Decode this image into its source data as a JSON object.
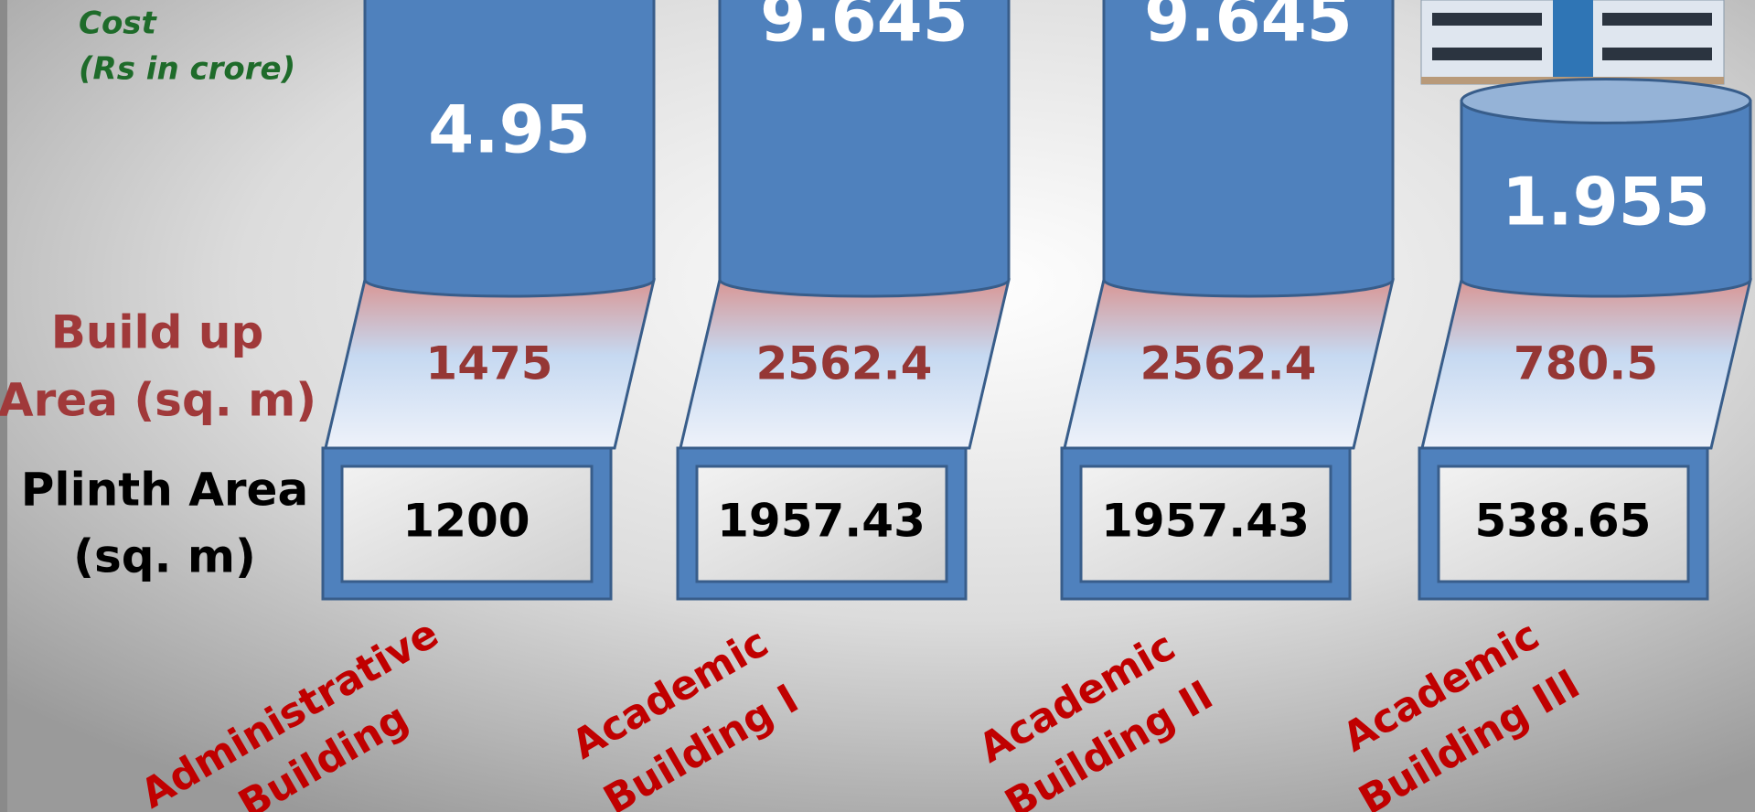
{
  "labels": {
    "cost": "Cost",
    "cost_unit": "(Rs in crore)",
    "build_up_line1": "Build up",
    "build_up_line2": "Area (sq. m)",
    "plinth_line1": "Plinth Area",
    "plinth_line2": "(sq. m)"
  },
  "buildings": [
    {
      "name": [
        "Administrative",
        "Building"
      ],
      "cost": 4.95,
      "build_up_area": 1475,
      "plinth_area": 1200
    },
    {
      "name": [
        "Academic",
        "Building I"
      ],
      "cost": 9.645,
      "build_up_area": 2562.4,
      "plinth_area": 1957.43
    },
    {
      "name": [
        "Academic",
        "Building II"
      ],
      "cost": 9.645,
      "build_up_area": 2562.4,
      "plinth_area": 1957.43
    },
    {
      "name": [
        "Academic",
        "Building III"
      ],
      "cost": 1.955,
      "build_up_area": 780.5,
      "plinth_area": 538.65
    }
  ]
}
